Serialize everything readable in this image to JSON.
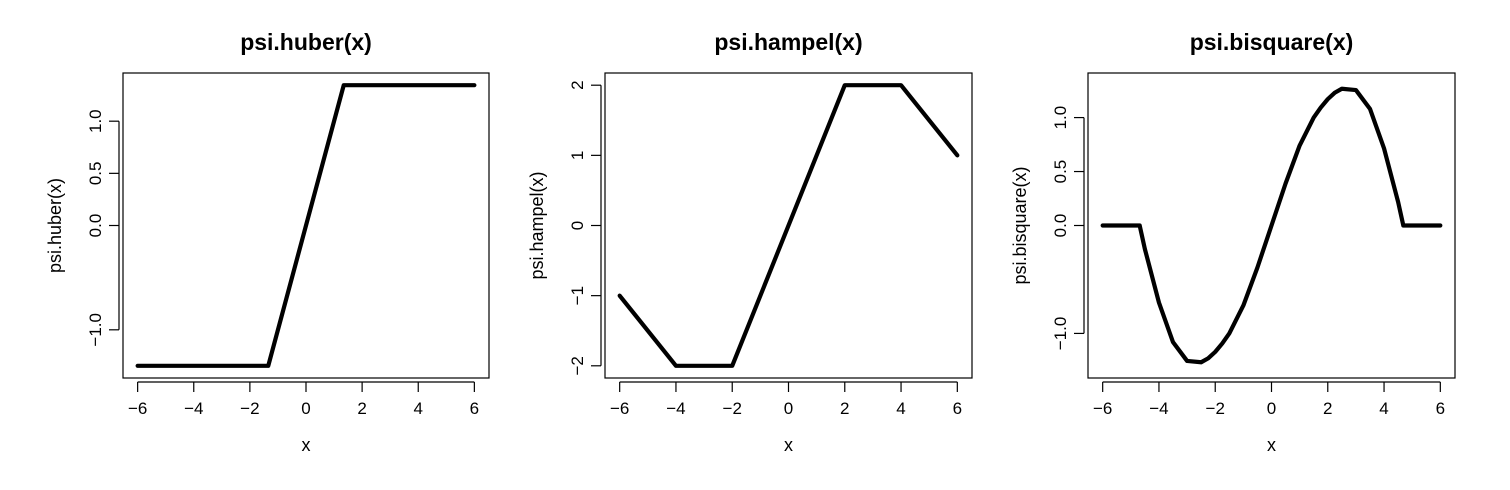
{
  "chart_data": [
    {
      "type": "line",
      "title": "psi.huber(x)",
      "xlabel": "x",
      "ylabel": "psi.huber(x)",
      "xlim": [
        -6,
        6
      ],
      "ylim": [
        -1.345,
        1.345
      ],
      "x_ticks": [
        -6,
        -4,
        -2,
        0,
        2,
        4,
        6
      ],
      "x_tick_labels": [
        "−6",
        "−4",
        "−2",
        "0",
        "2",
        "4",
        "6"
      ],
      "y_ticks": [
        -1.0,
        0.0,
        0.5,
        1.0
      ],
      "y_tick_labels": [
        "−1.0",
        "0.0",
        "0.5",
        "1.0"
      ],
      "y_tick_rotation": "vertical",
      "grid": false,
      "line_color": "#000000",
      "series": [
        {
          "x": [
            -6,
            -1.345,
            1.345,
            6
          ],
          "values": [
            -1.345,
            -1.345,
            1.345,
            1.345
          ]
        }
      ]
    },
    {
      "type": "line",
      "title": "psi.hampel(x)",
      "xlabel": "x",
      "ylabel": "psi.hampel(x)",
      "xlim": [
        -6,
        6
      ],
      "ylim": [
        -2,
        2
      ],
      "x_ticks": [
        -6,
        -4,
        -2,
        0,
        2,
        4,
        6
      ],
      "x_tick_labels": [
        "−6",
        "−4",
        "−2",
        "0",
        "2",
        "4",
        "6"
      ],
      "y_ticks": [
        -2,
        -1,
        0,
        1,
        2
      ],
      "y_tick_labels": [
        "−2",
        "−1",
        "0",
        "1",
        "2"
      ],
      "y_tick_rotation": "vertical",
      "grid": false,
      "line_color": "#000000",
      "series": [
        {
          "x": [
            -6,
            -4,
            -2,
            2,
            4,
            6
          ],
          "values": [
            -1,
            -2,
            -2,
            2,
            2,
            1
          ]
        }
      ]
    },
    {
      "type": "line",
      "title": "psi.bisquare(x)",
      "xlabel": "x",
      "ylabel": "psi.bisquare(x)",
      "xlim": [
        -6,
        6
      ],
      "ylim": [
        -1.3,
        1.3
      ],
      "x_ticks": [
        -6,
        -4,
        -2,
        0,
        2,
        4,
        6
      ],
      "x_tick_labels": [
        "−6",
        "−4",
        "−2",
        "0",
        "2",
        "4",
        "6"
      ],
      "y_ticks": [
        -1.0,
        0.0,
        0.5,
        1.0
      ],
      "y_tick_labels": [
        "−1.0",
        "0.0",
        "0.5",
        "1.0"
      ],
      "y_tick_rotation": "vertical",
      "grid": false,
      "line_color": "#000000",
      "series": [
        {
          "x": [
            -6,
            -5,
            -4.685,
            -4.5,
            -4,
            -3.5,
            -3,
            -2.5,
            -2.25,
            -2,
            -1.75,
            -1.5,
            -1,
            -0.5,
            0,
            0.5,
            1,
            1.5,
            1.75,
            2,
            2.25,
            2.5,
            3,
            3.5,
            4,
            4.5,
            4.685,
            5,
            6
          ],
          "values": [
            0,
            0,
            0,
            -0.218,
            -0.714,
            -1.081,
            -1.255,
            -1.267,
            -1.231,
            -1.171,
            -1.093,
            -1.0,
            -0.741,
            -0.389,
            0,
            0.389,
            0.741,
            1.0,
            1.093,
            1.171,
            1.231,
            1.267,
            1.255,
            1.081,
            0.714,
            0.218,
            0,
            0,
            0
          ]
        }
      ]
    }
  ]
}
